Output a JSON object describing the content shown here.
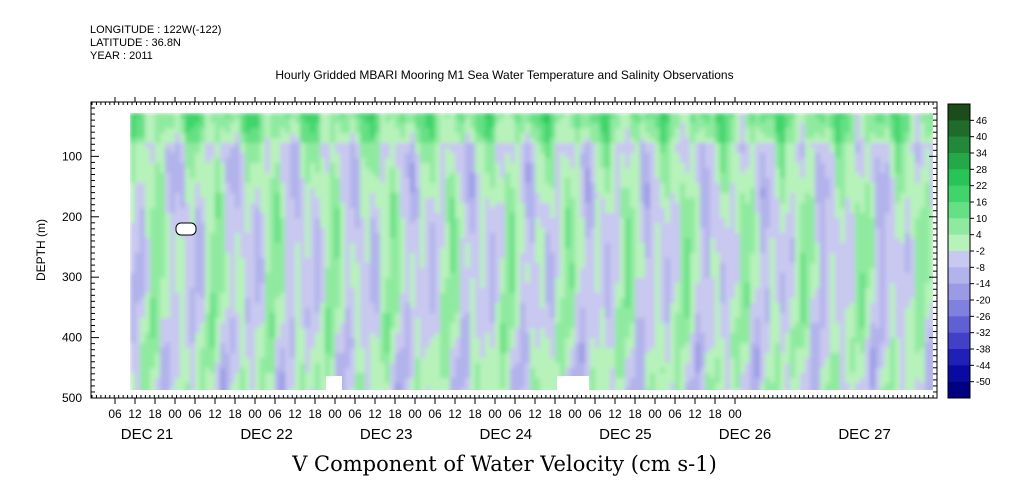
{
  "header": {
    "lines": [
      "LONGITUDE : 122W(-122)",
      "LATITUDE : 36.8N",
      "YEAR : 2011"
    ],
    "title": "Hourly Gridded MBARI Mooring M1 Sea Water Temperature and Salinity Observations"
  },
  "chart_data": {
    "type": "heatmap",
    "title": "Hourly Gridded MBARI Mooring M1 Sea Water Temperature and Salinity Observations",
    "subtitle": "V Component of Water Velocity (cm s-1)",
    "ylabel": "DEPTH (m)",
    "ylim": [
      500,
      10
    ],
    "y_ticks": [
      100,
      200,
      300,
      400,
      500
    ],
    "x_hour_ticks": [
      "06",
      "12",
      "18",
      "00",
      "06",
      "12",
      "18",
      "00",
      "06",
      "12",
      "18",
      "00",
      "06",
      "12",
      "18",
      "00",
      "06",
      "12",
      "18",
      "00",
      "06",
      "12",
      "18",
      "00",
      "06",
      "12",
      "18",
      "00",
      "06",
      "12",
      "18",
      "00"
    ],
    "x_day_labels": [
      "DEC 21",
      "DEC 22",
      "DEC 23",
      "DEC 24",
      "DEC 25",
      "DEC 26",
      "DEC 27"
    ],
    "colorbar": {
      "levels": [
        48,
        46,
        40,
        34,
        28,
        22,
        16,
        10,
        4,
        -2,
        -8,
        -14,
        -20,
        -26,
        -32,
        -38,
        -44,
        -50
      ],
      "labels": [
        "46",
        "40",
        "34",
        "28",
        "22",
        "16",
        "10",
        "4",
        "-2",
        "-8",
        "-14",
        "-20",
        "-26",
        "-32",
        "-38",
        "-44",
        "-50"
      ],
      "colors": [
        "#1a4d1a",
        "#1f6b2a",
        "#22893a",
        "#25a848",
        "#28c455",
        "#40d46a",
        "#66e085",
        "#8fea9f",
        "#b7f2bb",
        "#c8c8f0",
        "#b2b2ec",
        "#9a9ae6",
        "#8080de",
        "#6060d4",
        "#4040c8",
        "#2020b8",
        "#0a0aa0",
        "#000080"
      ]
    },
    "grid": false
  }
}
